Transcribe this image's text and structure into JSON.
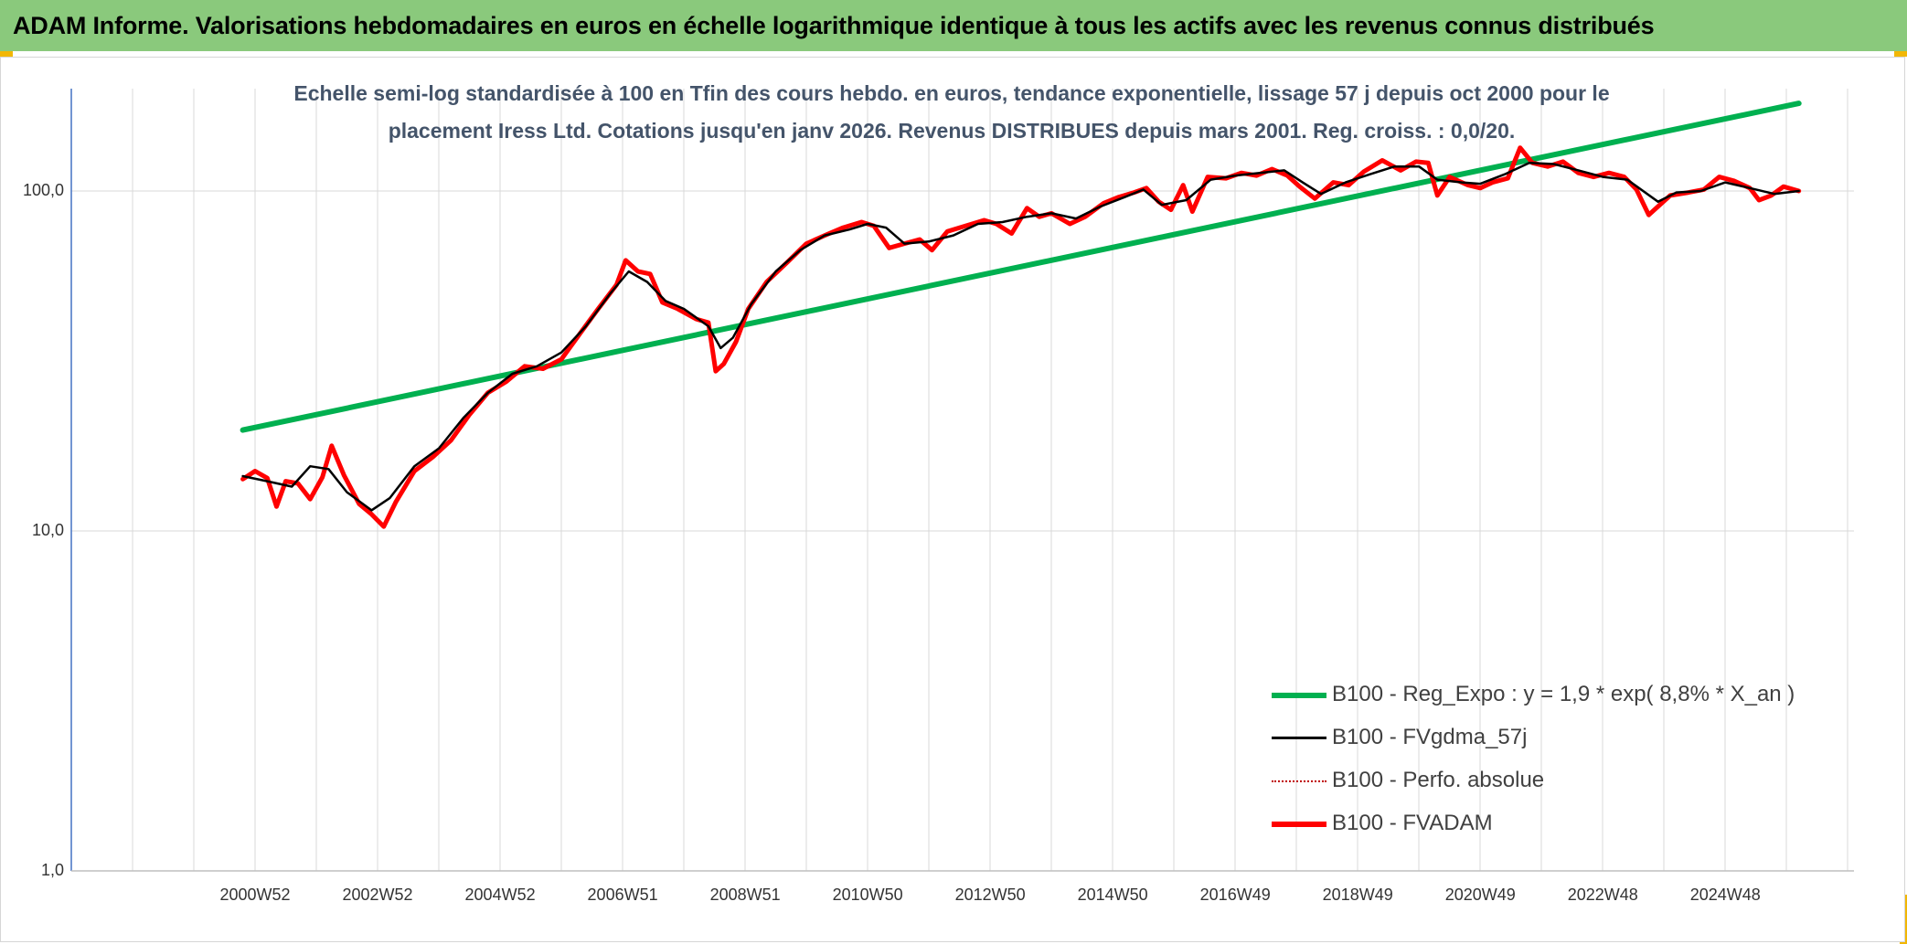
{
  "banner": {
    "title": "ADAM Informe. Valorisations hebdomadaires en euros en échelle logarithmique identique à tous les actifs avec les revenus connus distribués"
  },
  "colors": {
    "banner_bg": "#8ac97c",
    "regression": "#00b050",
    "smoothed": "#000000",
    "perfo": "#c00000",
    "fvadam": "#ff0000",
    "subtitle_text": "#44546a"
  },
  "chart_data": {
    "type": "line",
    "title": "Echelle semi-log standardisée à 100 en Tfin des cours hebdo. en euros, tendance exponentielle, lissage 57 j depuis oct 2000 pour le placement Iress Ltd. Cotations jusqu'en janv 2026. Revenus DISTRIBUES depuis mars 2001. Reg. croiss. : 0,0/20.",
    "title_lines": [
      "Echelle semi-log standardisée à 100 en Tfin des cours hebdo. en euros, tendance exponentielle, lissage 57 j depuis oct 2000 pour le",
      "placement Iress Ltd. Cotations jusqu'en janv 2026. Revenus DISTRIBUES depuis mars 2001. Reg. croiss. : 0,0/20."
    ],
    "y_scale": "log",
    "ylim": [
      1,
      200
    ],
    "y_ticks": [
      {
        "value": 100,
        "label": "100,0"
      },
      {
        "value": 10,
        "label": "10,0"
      },
      {
        "value": 1,
        "label": "1,0"
      }
    ],
    "xlim": [
      1998.0,
      2027.1
    ],
    "x_ticks": [
      {
        "value": 2001.0,
        "label": "2000W52"
      },
      {
        "value": 2003.0,
        "label": "2002W52"
      },
      {
        "value": 2005.0,
        "label": "2004W52"
      },
      {
        "value": 2007.0,
        "label": "2006W51"
      },
      {
        "value": 2009.0,
        "label": "2008W51"
      },
      {
        "value": 2011.0,
        "label": "2010W50"
      },
      {
        "value": 2013.0,
        "label": "2012W50"
      },
      {
        "value": 2015.0,
        "label": "2014W50"
      },
      {
        "value": 2017.0,
        "label": "2016W49"
      },
      {
        "value": 2019.0,
        "label": "2018W49"
      },
      {
        "value": 2021.0,
        "label": "2020W49"
      },
      {
        "value": 2023.0,
        "label": "2022W48"
      },
      {
        "value": 2025.0,
        "label": "2024W48"
      }
    ],
    "legend_position": "bottom-right",
    "series": [
      {
        "name": "B100 - Reg_Expo : y = 1,9 * exp( 8,8% *  X_an )",
        "key": "regression",
        "style": "thick-solid",
        "points": [
          [
            2000.8,
            19.8
          ],
          [
            2026.2,
            181
          ]
        ]
      },
      {
        "name": "B100 - FVgdma_57j",
        "key": "smoothed",
        "style": "solid",
        "points": [
          [
            2000.8,
            14.5
          ],
          [
            2001.2,
            14.0
          ],
          [
            2001.6,
            13.5
          ],
          [
            2001.9,
            15.5
          ],
          [
            2002.2,
            15.2
          ],
          [
            2002.5,
            13.0
          ],
          [
            2002.9,
            11.5
          ],
          [
            2003.2,
            12.5
          ],
          [
            2003.6,
            15.5
          ],
          [
            2004.0,
            17.5
          ],
          [
            2004.4,
            21.5
          ],
          [
            2004.8,
            25.5
          ],
          [
            2005.2,
            29.0
          ],
          [
            2005.6,
            30.5
          ],
          [
            2006.0,
            33.5
          ],
          [
            2006.4,
            40.0
          ],
          [
            2006.8,
            50.0
          ],
          [
            2007.1,
            58.0
          ],
          [
            2007.4,
            54.0
          ],
          [
            2007.7,
            47.5
          ],
          [
            2008.0,
            45.0
          ],
          [
            2008.4,
            40.0
          ],
          [
            2008.6,
            34.5
          ],
          [
            2008.8,
            37.0
          ],
          [
            2009.1,
            46.5
          ],
          [
            2009.5,
            58.0
          ],
          [
            2009.9,
            67.0
          ],
          [
            2010.3,
            74.0
          ],
          [
            2010.7,
            77.0
          ],
          [
            2011.0,
            80.0
          ],
          [
            2011.3,
            78.0
          ],
          [
            2011.6,
            70.0
          ],
          [
            2012.0,
            71.0
          ],
          [
            2012.4,
            74.0
          ],
          [
            2012.8,
            80.0
          ],
          [
            2013.2,
            81.0
          ],
          [
            2013.6,
            84.0
          ],
          [
            2014.0,
            86.0
          ],
          [
            2014.4,
            83.0
          ],
          [
            2014.8,
            90.0
          ],
          [
            2015.2,
            96.0
          ],
          [
            2015.5,
            101.0
          ],
          [
            2015.8,
            91.0
          ],
          [
            2016.2,
            94.0
          ],
          [
            2016.6,
            108.0
          ],
          [
            2017.0,
            111.0
          ],
          [
            2017.4,
            113.0
          ],
          [
            2017.8,
            115.0
          ],
          [
            2018.1,
            106.0
          ],
          [
            2018.4,
            98.0
          ],
          [
            2018.8,
            106.0
          ],
          [
            2019.2,
            112.0
          ],
          [
            2019.6,
            118.0
          ],
          [
            2020.0,
            118.0
          ],
          [
            2020.3,
            108.0
          ],
          [
            2020.7,
            106.0
          ],
          [
            2021.0,
            105.0
          ],
          [
            2021.4,
            112.0
          ],
          [
            2021.8,
            121.0
          ],
          [
            2022.2,
            120.0
          ],
          [
            2022.6,
            115.0
          ],
          [
            2023.0,
            110.0
          ],
          [
            2023.4,
            108.0
          ],
          [
            2023.9,
            93.0
          ],
          [
            2024.2,
            99.0
          ],
          [
            2024.6,
            100.0
          ],
          [
            2025.0,
            106.0
          ],
          [
            2025.4,
            102.0
          ],
          [
            2025.8,
            98.0
          ],
          [
            2026.2,
            100.0
          ]
        ]
      },
      {
        "name": "B100 - Perfo. absolue",
        "key": "perfo",
        "style": "dotted",
        "points": []
      },
      {
        "name": "B100 - FVADAM",
        "key": "fvadam",
        "style": "thick-solid",
        "points": [
          [
            2000.8,
            14.2
          ],
          [
            2001.0,
            15.0
          ],
          [
            2001.2,
            14.3
          ],
          [
            2001.35,
            11.8
          ],
          [
            2001.5,
            14.0
          ],
          [
            2001.7,
            13.8
          ],
          [
            2001.9,
            12.4
          ],
          [
            2002.1,
            14.4
          ],
          [
            2002.25,
            17.8
          ],
          [
            2002.45,
            14.6
          ],
          [
            2002.7,
            12.0
          ],
          [
            2002.9,
            11.2
          ],
          [
            2003.1,
            10.3
          ],
          [
            2003.3,
            12.2
          ],
          [
            2003.6,
            15.0
          ],
          [
            2003.9,
            16.5
          ],
          [
            2004.2,
            18.5
          ],
          [
            2004.5,
            22.0
          ],
          [
            2004.8,
            25.5
          ],
          [
            2005.1,
            27.5
          ],
          [
            2005.4,
            30.5
          ],
          [
            2005.7,
            30.0
          ],
          [
            2006.0,
            32.0
          ],
          [
            2006.3,
            38.0
          ],
          [
            2006.6,
            45.0
          ],
          [
            2006.9,
            53.0
          ],
          [
            2007.05,
            62.5
          ],
          [
            2007.25,
            58.0
          ],
          [
            2007.45,
            57.0
          ],
          [
            2007.65,
            47.0
          ],
          [
            2007.9,
            45.0
          ],
          [
            2008.2,
            42.0
          ],
          [
            2008.4,
            41.0
          ],
          [
            2008.52,
            29.5
          ],
          [
            2008.65,
            31.0
          ],
          [
            2008.85,
            36.0
          ],
          [
            2009.05,
            45.0
          ],
          [
            2009.35,
            54.0
          ],
          [
            2009.7,
            62.0
          ],
          [
            2010.0,
            70.0
          ],
          [
            2010.3,
            74.0
          ],
          [
            2010.6,
            78.0
          ],
          [
            2010.9,
            81.0
          ],
          [
            2011.1,
            79.0
          ],
          [
            2011.35,
            68.0
          ],
          [
            2011.6,
            70.0
          ],
          [
            2011.85,
            72.0
          ],
          [
            2012.05,
            67.0
          ],
          [
            2012.3,
            76.0
          ],
          [
            2012.6,
            79.0
          ],
          [
            2012.9,
            82.0
          ],
          [
            2013.1,
            80.0
          ],
          [
            2013.35,
            75.0
          ],
          [
            2013.6,
            89.0
          ],
          [
            2013.8,
            84.0
          ],
          [
            2014.0,
            86.0
          ],
          [
            2014.3,
            80.0
          ],
          [
            2014.55,
            84.0
          ],
          [
            2014.85,
            92.0
          ],
          [
            2015.1,
            96.0
          ],
          [
            2015.35,
            99.0
          ],
          [
            2015.55,
            102.0
          ],
          [
            2015.75,
            93.0
          ],
          [
            2015.95,
            88.0
          ],
          [
            2016.15,
            104.0
          ],
          [
            2016.3,
            87.0
          ],
          [
            2016.55,
            110.0
          ],
          [
            2016.85,
            109.0
          ],
          [
            2017.1,
            113.0
          ],
          [
            2017.35,
            111.0
          ],
          [
            2017.6,
            116.0
          ],
          [
            2017.85,
            111.0
          ],
          [
            2018.05,
            103.0
          ],
          [
            2018.3,
            95.0
          ],
          [
            2018.6,
            106.0
          ],
          [
            2018.85,
            104.0
          ],
          [
            2019.1,
            114.0
          ],
          [
            2019.4,
            123.0
          ],
          [
            2019.7,
            115.0
          ],
          [
            2019.95,
            122.0
          ],
          [
            2020.15,
            121.0
          ],
          [
            2020.3,
            97.0
          ],
          [
            2020.5,
            110.0
          ],
          [
            2020.8,
            104.0
          ],
          [
            2021.0,
            102.0
          ],
          [
            2021.2,
            106.0
          ],
          [
            2021.45,
            109.0
          ],
          [
            2021.65,
            134.0
          ],
          [
            2021.85,
            121.0
          ],
          [
            2022.1,
            118.0
          ],
          [
            2022.35,
            122.0
          ],
          [
            2022.6,
            113.0
          ],
          [
            2022.85,
            110.0
          ],
          [
            2023.1,
            113.0
          ],
          [
            2023.35,
            110.0
          ],
          [
            2023.55,
            101.0
          ],
          [
            2023.75,
            85.0
          ],
          [
            2023.9,
            90.0
          ],
          [
            2024.1,
            97.0
          ],
          [
            2024.4,
            99.0
          ],
          [
            2024.65,
            101.0
          ],
          [
            2024.9,
            110.0
          ],
          [
            2025.15,
            107.0
          ],
          [
            2025.4,
            102.0
          ],
          [
            2025.55,
            94.0
          ],
          [
            2025.75,
            97.0
          ],
          [
            2025.95,
            103.0
          ],
          [
            2026.2,
            100.0
          ]
        ]
      }
    ]
  }
}
